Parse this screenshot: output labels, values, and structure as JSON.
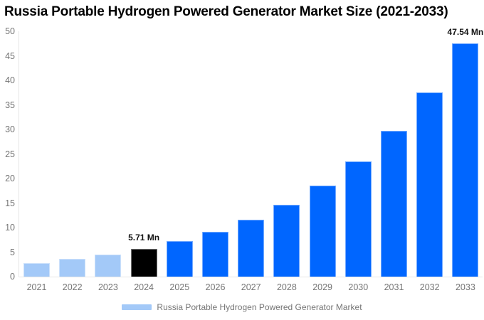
{
  "title": "Russia Portable Hydrogen Powered Generator Market Size (2021-2033)",
  "chart_data": {
    "type": "bar",
    "title": "Russia Portable Hydrogen Powered Generator Market Size (2021-2033)",
    "categories": [
      "2021",
      "2022",
      "2023",
      "2024",
      "2025",
      "2026",
      "2027",
      "2028",
      "2029",
      "2030",
      "2031",
      "2032",
      "2033"
    ],
    "series": [
      {
        "name": "Russia Portable Hydrogen Powered Generator Market",
        "values": [
          2.82,
          3.57,
          4.51,
          5.71,
          7.23,
          9.15,
          11.58,
          14.65,
          18.54,
          23.46,
          29.69,
          37.57,
          47.54
        ]
      }
    ],
    "unit": "Mn",
    "xlabel": "",
    "ylabel": "",
    "ylim": [
      0,
      50
    ],
    "ytick_step": 5,
    "yticks": [
      0,
      5,
      10,
      15,
      20,
      25,
      30,
      35,
      40,
      45,
      50
    ],
    "grid": false,
    "legend_position": "bottom",
    "bar_colors": [
      "#A3C9F8",
      "#A3C9F8",
      "#A3C9F8",
      "#000000",
      "#0066FF",
      "#0066FF",
      "#0066FF",
      "#0066FF",
      "#0066FF",
      "#0066FF",
      "#0066FF",
      "#0066FF",
      "#0066FF"
    ],
    "annotations": [
      {
        "category": "2024",
        "text": "5.71 Mn"
      },
      {
        "category": "2033",
        "text": "47.54 Mn"
      }
    ]
  },
  "legend": {
    "label": "Russia Portable Hydrogen Powered Generator Market",
    "swatch_color": "#A3C9F8"
  },
  "colors": {
    "historical_bar": "#A3C9F8",
    "base_year_bar": "#000000",
    "forecast_bar": "#0066FF",
    "axis_line": "#E6E6E6",
    "tick_label": "#757575",
    "title_text": "#000000",
    "background": "#FFFFFF"
  }
}
